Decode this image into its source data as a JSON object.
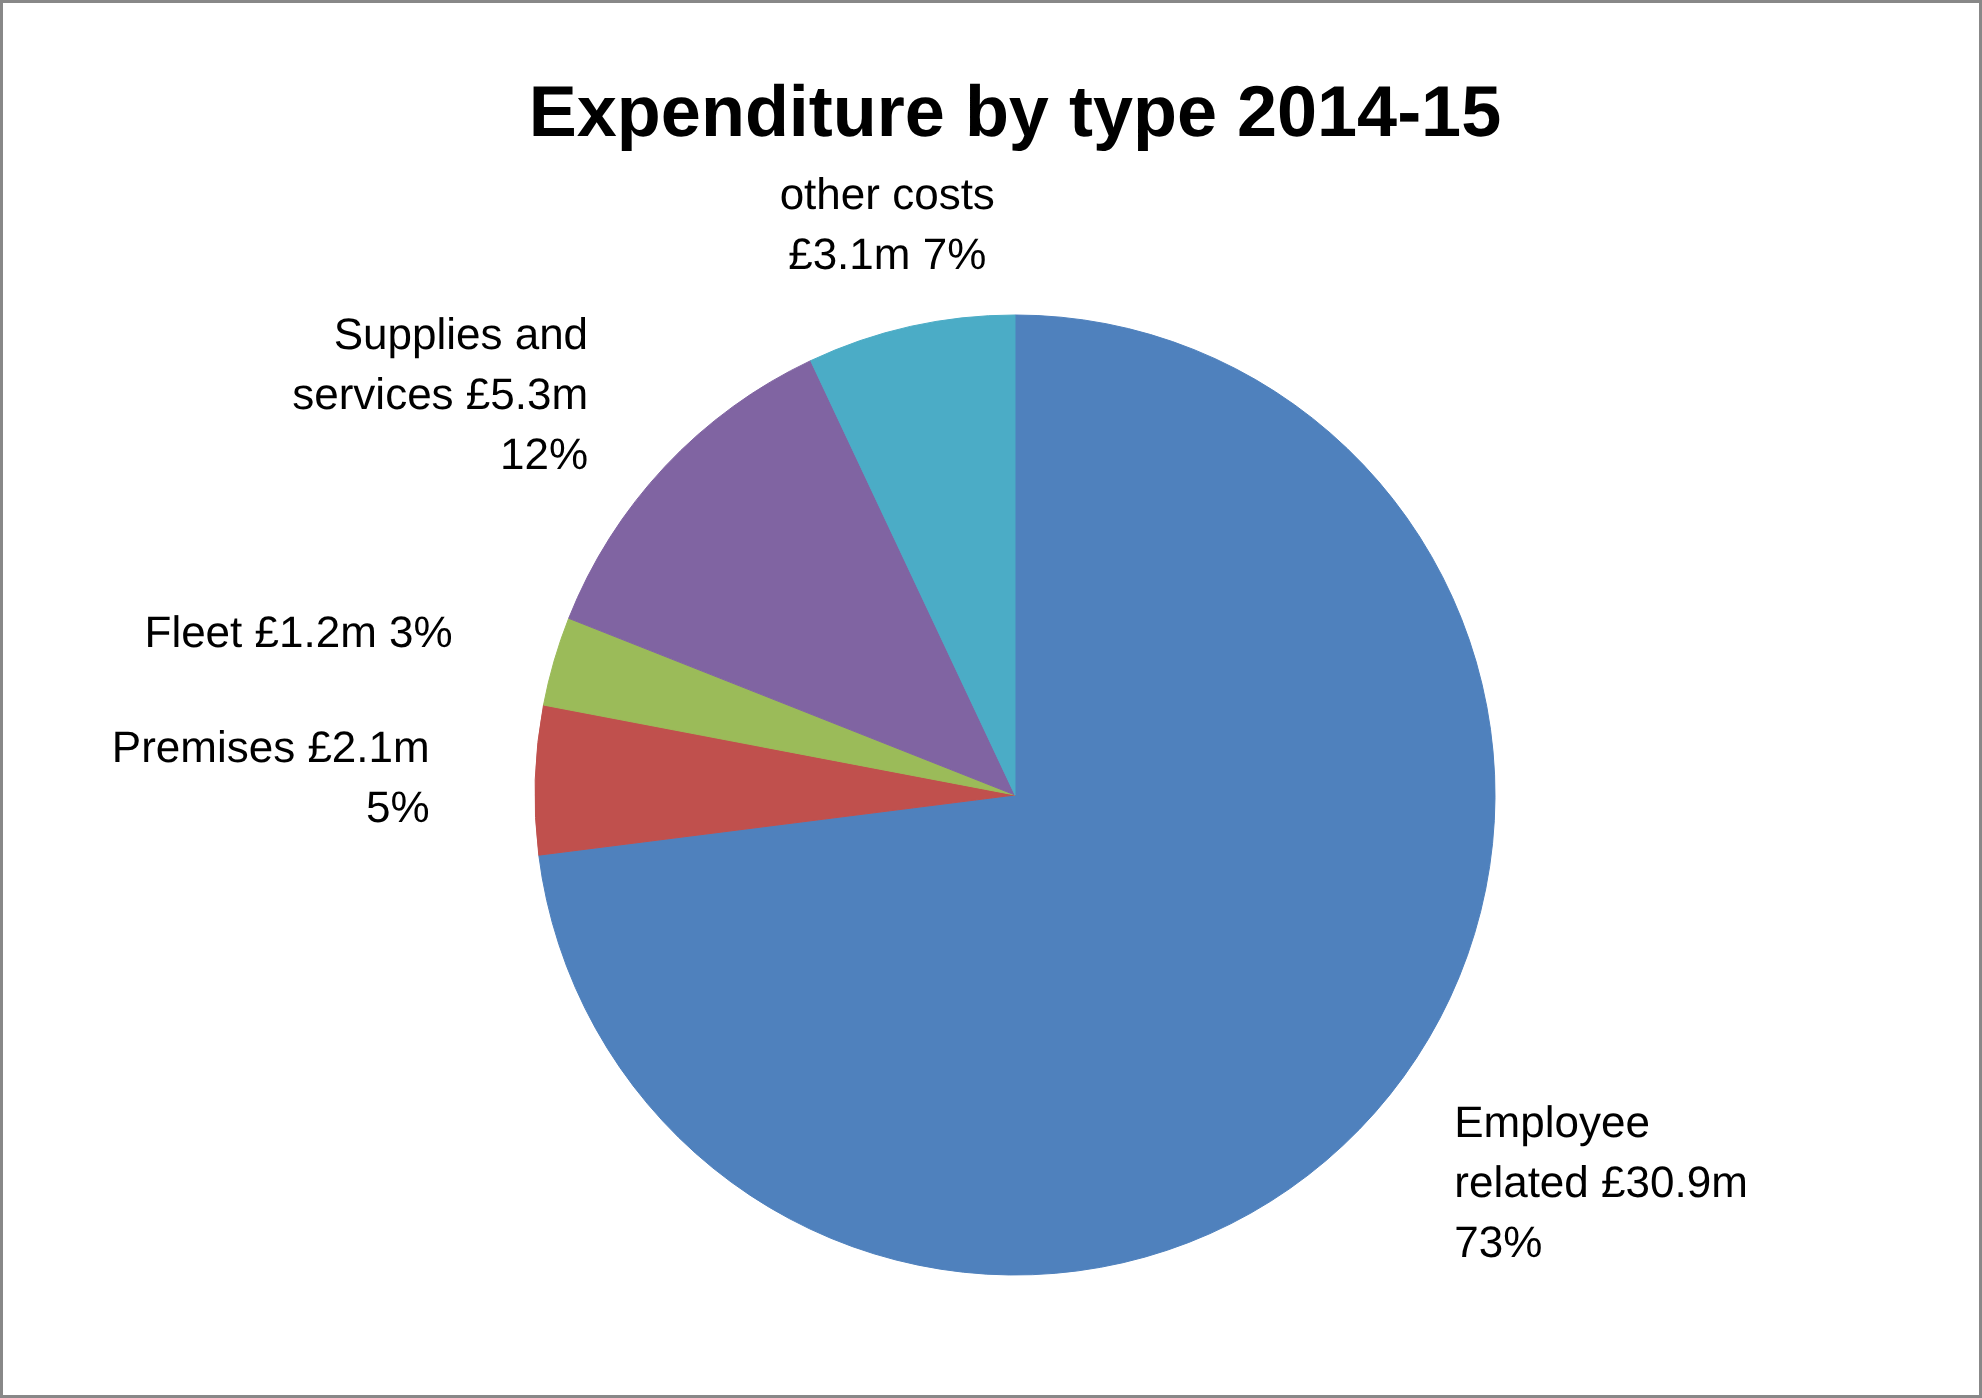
{
  "chart_data": {
    "type": "pie",
    "title": "Expenditure by type 2014-15",
    "categories": [
      "Employee related £30.9m",
      "Premises £2.1m",
      "Fleet £1.2m",
      "Supplies and services £5.3m",
      "other costs £3.1m"
    ],
    "values": [
      73,
      5,
      3,
      12,
      7
    ],
    "value_labels": [
      "73%",
      "5%",
      "3%",
      "12%",
      "7%"
    ],
    "colors": [
      "#4f81bd",
      "#c0504d",
      "#9bbb59",
      "#8064a2",
      "#4bacc6"
    ],
    "legend": false
  }
}
